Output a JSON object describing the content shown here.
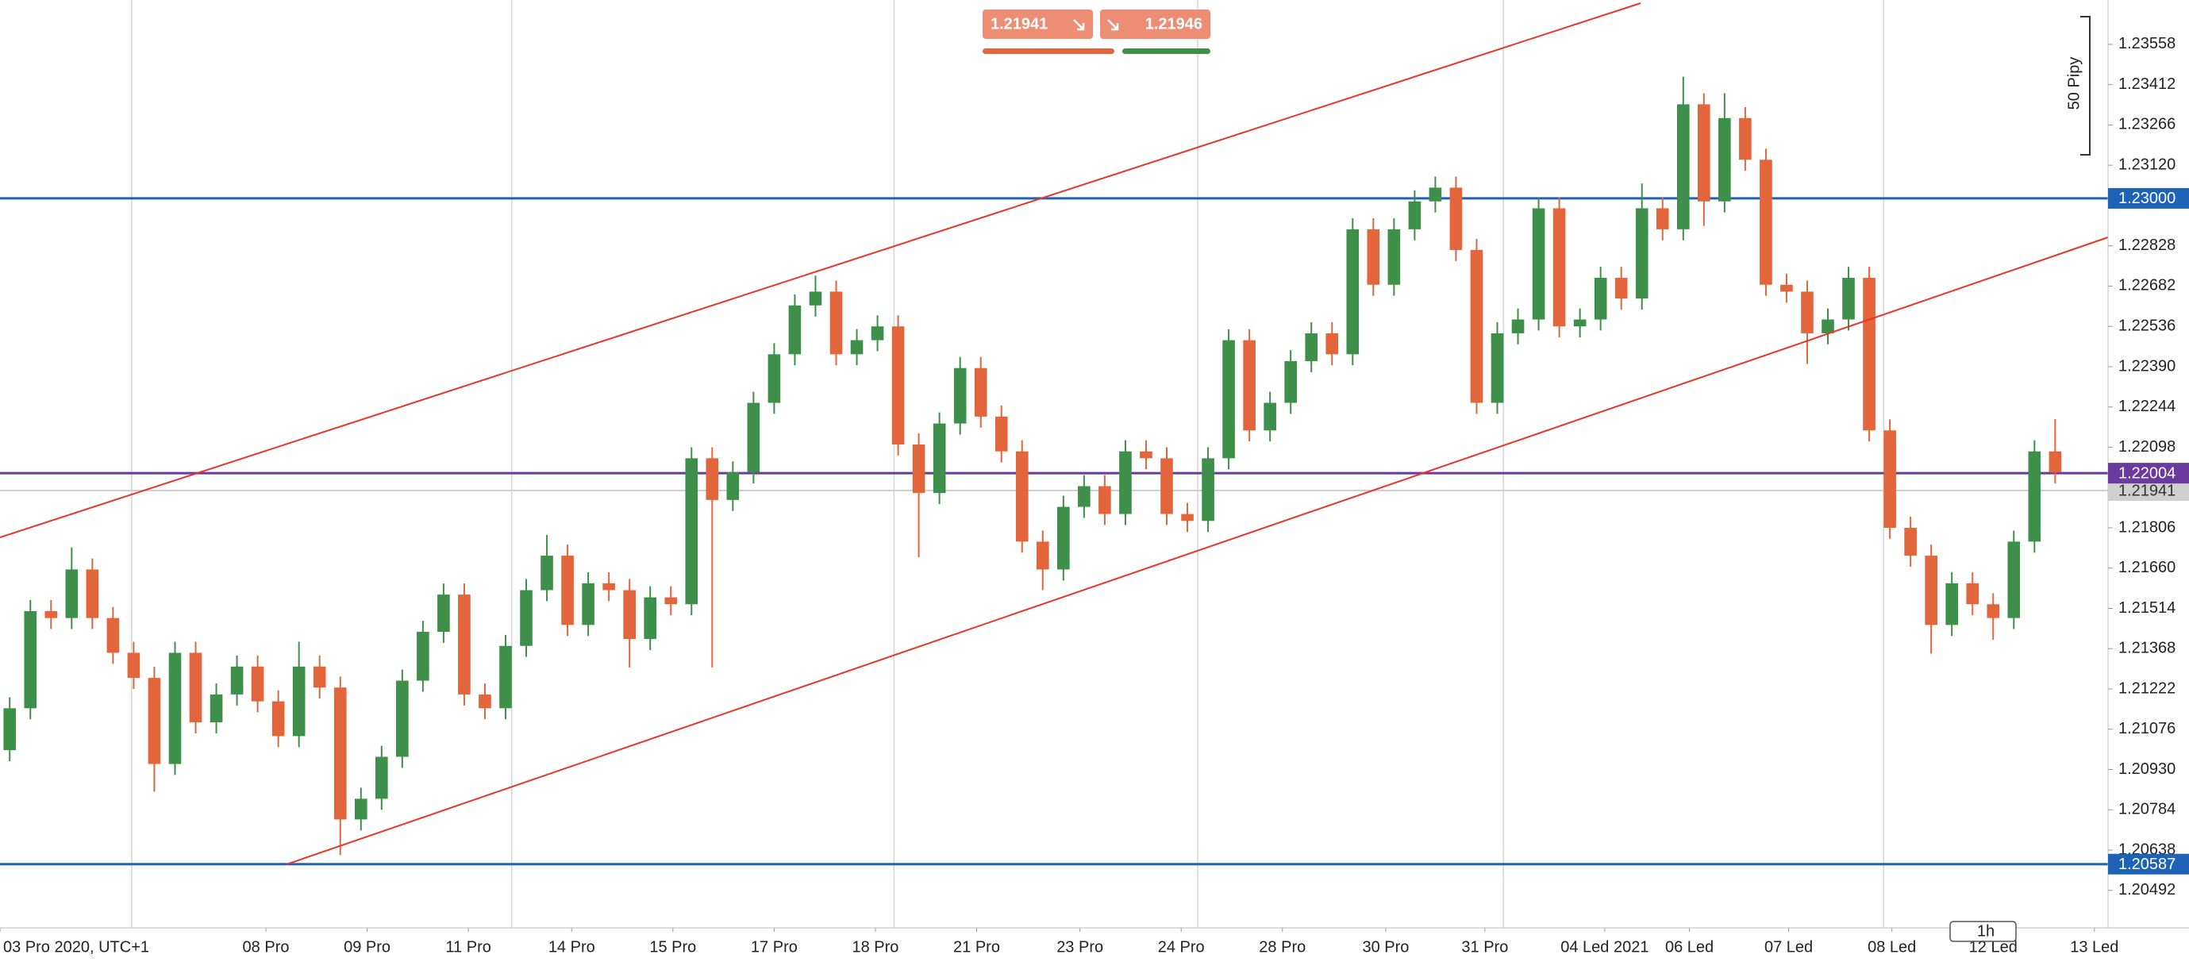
{
  "chart_data": {
    "type": "candlestick",
    "xlim": [
      -0.47,
      101.56
    ],
    "ylim": [
      1.20356,
      1.23719
    ],
    "yticks": [
      1.20492,
      1.20638,
      1.20784,
      {
        "value": 1.2093,
        "label": "1.20930"
      },
      1.21076,
      1.21222,
      1.21368,
      1.21514,
      {
        "value": 1.2166,
        "label": "1.21660"
      },
      1.21806,
      1.22098,
      1.22244,
      {
        "value": 1.2239,
        "label": "1.22390"
      },
      1.22536,
      1.22682,
      1.22828,
      {
        "value": 1.2312,
        "label": "1.23120"
      },
      1.23266,
      1.23412,
      1.23558
    ],
    "xticks": [
      {
        "value": -0.47,
        "label": "03 Pro 2020, UTC+1"
      },
      {
        "value": 12.4,
        "label": "08 Pro"
      },
      {
        "value": 17.3,
        "label": "09 Pro"
      },
      {
        "value": 22.2,
        "label": "11 Pro"
      },
      {
        "value": 27.2,
        "label": "14 Pro"
      },
      {
        "value": 32.1,
        "label": "15 Pro"
      },
      {
        "value": 37.0,
        "label": "17 Pro"
      },
      {
        "value": 41.9,
        "label": "18 Pro"
      },
      {
        "value": 46.8,
        "label": "21 Pro"
      },
      {
        "value": 51.8,
        "label": "23 Pro"
      },
      {
        "value": 56.7,
        "label": "24 Pro"
      },
      {
        "value": 61.6,
        "label": "28 Pro"
      },
      {
        "value": 66.6,
        "label": "30 Pro"
      },
      {
        "value": 71.4,
        "label": "31 Pro"
      },
      {
        "value": 77.2,
        "label": "04 Led 2021"
      },
      {
        "value": 81.3,
        "label": "06 Led"
      },
      {
        "value": 86.1,
        "label": "07 Led"
      },
      {
        "value": 91.1,
        "label": "08 Led"
      },
      {
        "value": 96.0,
        "label": "12 Led"
      },
      {
        "value": 100.9,
        "label": "13 Led"
      }
    ],
    "xgrid": [
      5.9,
      24.3,
      42.8,
      57.5,
      72.3,
      90.7
    ],
    "up_color": "#3d8f4a",
    "down_color": "#e2653b",
    "open": [
      1.21,
      1.21152,
      1.21504,
      1.21479,
      1.21655,
      1.21479,
      1.21353,
      1.21262,
      1.2095,
      1.21353,
      1.21101,
      1.21202,
      1.21303,
      1.21177,
      1.21051,
      1.21303,
      1.21227,
      1.20749,
      1.20824,
      1.20976,
      1.21252,
      1.21429,
      1.21564,
      1.21202,
      1.21152,
      1.21378,
      1.2158,
      1.21705,
      1.21454,
      1.21605,
      1.2158,
      1.21403,
      1.21554,
      1.21529,
      1.22058,
      1.21907,
      1.22007,
      1.22259,
      1.22435,
      1.22612,
      1.22662,
      1.22435,
      1.22486,
      1.22536,
      1.22108,
      1.21932,
      1.22184,
      1.22385,
      1.22209,
      1.22083,
      1.21756,
      1.21655,
      1.21882,
      1.21957,
      1.21856,
      1.22083,
      1.22058,
      1.21856,
      1.21831,
      1.22058,
      1.22486,
      1.22159,
      1.22259,
      1.2241,
      1.22511,
      1.22435,
      1.22888,
      1.22687,
      1.22888,
      1.22989,
      1.23039,
      1.22813,
      1.22259,
      1.22511,
      1.22561,
      1.22964,
      1.22536,
      1.22561,
      1.22712,
      1.22637,
      1.22964,
      1.22888,
      1.23341,
      1.22989,
      1.23291,
      1.2314,
      1.22687,
      1.22662,
      1.22511,
      1.22561,
      1.22712,
      1.22159,
      1.21806,
      1.21705,
      1.21454,
      1.21605,
      1.21529,
      1.21479,
      1.21756,
      1.22083
    ],
    "high": [
      1.21192,
      1.21544,
      1.21544,
      1.21735,
      1.21695,
      1.21519,
      1.21393,
      1.21302,
      1.21393,
      1.21393,
      1.21242,
      1.21343,
      1.21343,
      1.21217,
      1.21393,
      1.21343,
      1.21267,
      1.20864,
      1.21016,
      1.21292,
      1.21469,
      1.21604,
      1.21604,
      1.21242,
      1.21418,
      1.2162,
      1.2178,
      1.21745,
      1.21645,
      1.21645,
      1.2162,
      1.21594,
      1.21594,
      1.22098,
      1.22098,
      1.22047,
      1.22299,
      1.22475,
      1.22652,
      1.2272,
      1.22702,
      1.22526,
      1.22576,
      1.22576,
      1.22148,
      1.22224,
      1.22425,
      1.22425,
      1.22249,
      1.22123,
      1.21796,
      1.21922,
      1.21997,
      1.21997,
      1.22123,
      1.22123,
      1.22098,
      1.21896,
      1.22098,
      1.22526,
      1.22526,
      1.22299,
      1.2245,
      1.22551,
      1.22551,
      1.22928,
      1.22928,
      1.22928,
      1.23029,
      1.23079,
      1.23079,
      1.22853,
      1.22551,
      1.22601,
      1.23004,
      1.23004,
      1.22601,
      1.22752,
      1.22752,
      1.23054,
      1.23004,
      1.23441,
      1.23381,
      1.23381,
      1.23331,
      1.2318,
      1.22727,
      1.22702,
      1.22601,
      1.22752,
      1.22752,
      1.22199,
      1.21846,
      1.21745,
      1.21645,
      1.21645,
      1.21569,
      1.21796,
      1.22123,
      1.222
    ],
    "low": [
      1.2096,
      1.21112,
      1.21439,
      1.21439,
      1.21439,
      1.21313,
      1.21222,
      1.2085,
      1.2091,
      1.21061,
      1.21061,
      1.21162,
      1.21137,
      1.21011,
      1.21011,
      1.21187,
      1.2062,
      1.20709,
      1.20784,
      1.20936,
      1.21212,
      1.21389,
      1.21162,
      1.21112,
      1.21112,
      1.21338,
      1.2154,
      1.21414,
      1.21414,
      1.2154,
      1.213,
      1.21363,
      1.21489,
      1.21489,
      1.213,
      1.21867,
      1.21967,
      1.22219,
      1.22395,
      1.22572,
      1.22395,
      1.22395,
      1.22446,
      1.22068,
      1.217,
      1.21892,
      1.22144,
      1.22169,
      1.22043,
      1.21716,
      1.2158,
      1.21615,
      1.21842,
      1.21816,
      1.21816,
      1.22018,
      1.21816,
      1.21791,
      1.21791,
      1.22018,
      1.22119,
      1.22119,
      1.22219,
      1.2237,
      1.22395,
      1.22395,
      1.22647,
      1.22647,
      1.22848,
      1.22949,
      1.22773,
      1.22219,
      1.22219,
      1.22471,
      1.22521,
      1.22496,
      1.22496,
      1.22521,
      1.22597,
      1.22597,
      1.22848,
      1.22848,
      1.229,
      1.22949,
      1.231,
      1.22647,
      1.22622,
      1.224,
      1.22471,
      1.22521,
      1.22119,
      1.21766,
      1.21665,
      1.2135,
      1.21414,
      1.21489,
      1.214,
      1.21439,
      1.21716,
      1.21967
    ],
    "close": [
      1.21152,
      1.21504,
      1.21479,
      1.21655,
      1.21479,
      1.21353,
      1.21262,
      1.2095,
      1.21353,
      1.21101,
      1.21202,
      1.21303,
      1.21177,
      1.21051,
      1.21303,
      1.21227,
      1.20749,
      1.20824,
      1.20976,
      1.21252,
      1.21429,
      1.21564,
      1.21202,
      1.21152,
      1.21378,
      1.2158,
      1.21705,
      1.21454,
      1.21605,
      1.2158,
      1.21403,
      1.21554,
      1.21529,
      1.22058,
      1.21907,
      1.22007,
      1.22259,
      1.22435,
      1.22612,
      1.22662,
      1.22435,
      1.22486,
      1.22536,
      1.22108,
      1.21932,
      1.22184,
      1.22385,
      1.22209,
      1.22083,
      1.21756,
      1.21655,
      1.21882,
      1.21957,
      1.21856,
      1.22083,
      1.22058,
      1.21856,
      1.21831,
      1.22058,
      1.22486,
      1.22159,
      1.22259,
      1.2241,
      1.22511,
      1.22435,
      1.22888,
      1.22687,
      1.22888,
      1.22989,
      1.23039,
      1.22813,
      1.22259,
      1.22511,
      1.22561,
      1.22964,
      1.22536,
      1.22561,
      1.22712,
      1.22637,
      1.22964,
      1.22888,
      1.23341,
      1.22989,
      1.23291,
      1.2314,
      1.22687,
      1.22662,
      1.22511,
      1.22561,
      1.22712,
      1.22159,
      1.21806,
      1.21705,
      1.21454,
      1.21605,
      1.21529,
      1.21479,
      1.21756,
      1.22083,
      1.22007
    ],
    "price_lines": [
      {
        "value": 1.21941,
        "label": "1.21941",
        "color": "#cfcfcf"
      },
      {
        "value": 1.23,
        "label": "1.23000",
        "color": "#1f63b8"
      },
      {
        "value": 1.22004,
        "label": "1.22004",
        "color": "#6a3a9e"
      },
      {
        "value": 1.20587,
        "label": "1.20587",
        "color": "#1f63b8"
      }
    ],
    "quote": {
      "sell": "1.21941",
      "buy": "1.21946"
    },
    "range_note": "50 Pipy",
    "timeframe": "1h"
  }
}
